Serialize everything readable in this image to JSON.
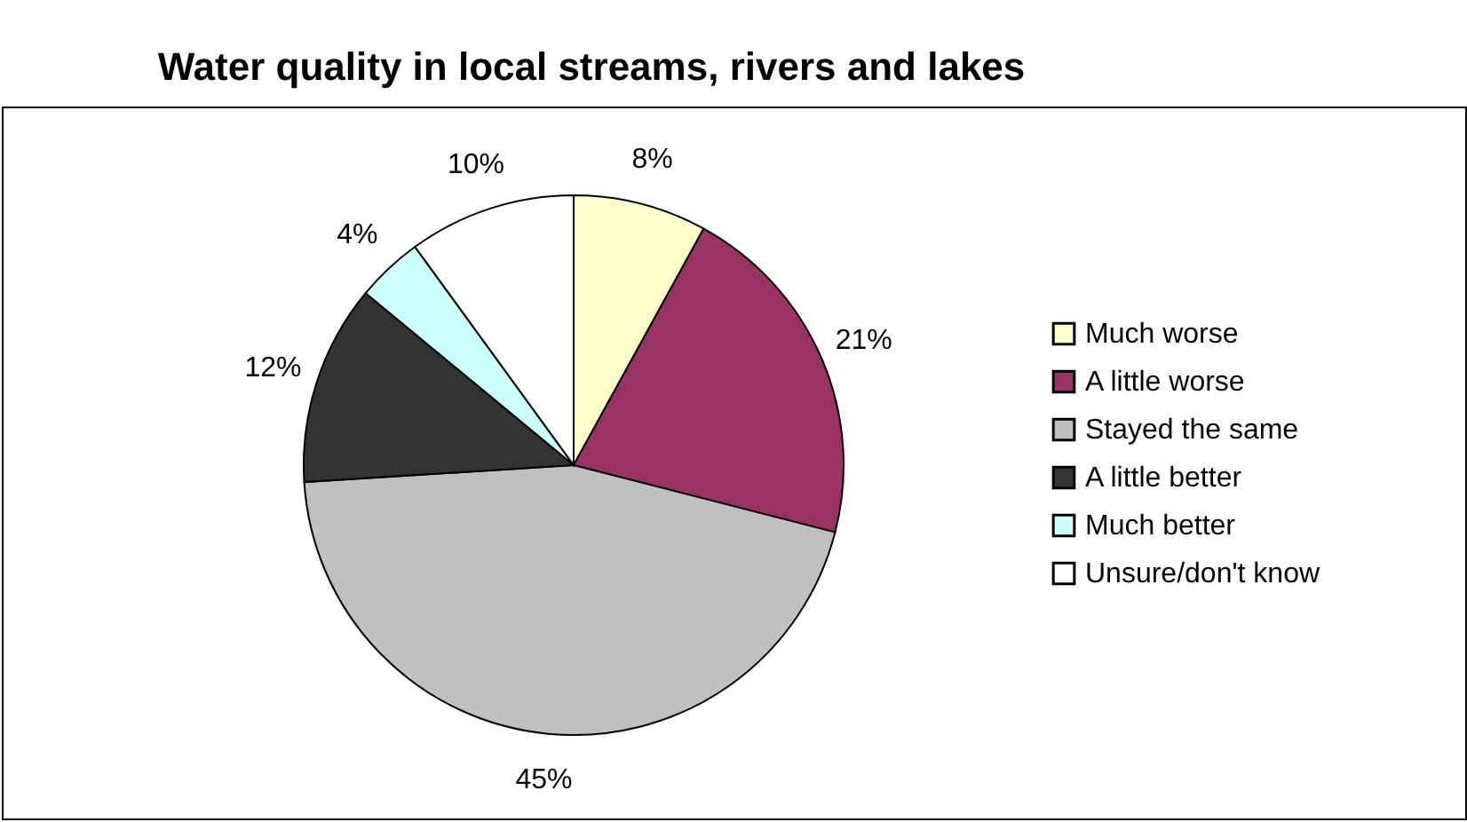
{
  "chart_data": {
    "type": "pie",
    "title": "Water quality in local streams, rivers and lakes",
    "categories": [
      "Much worse",
      "A little worse",
      "Stayed the same",
      "A little better",
      "Much better",
      "Unsure/don't know"
    ],
    "values": [
      8,
      21,
      45,
      12,
      4,
      10
    ],
    "value_labels": [
      "8%",
      "21%",
      "45%",
      "12%",
      "4%",
      "10%"
    ],
    "colors": [
      "#ffffcc",
      "#993366",
      "#c0c0c0",
      "#333333",
      "#ccffff",
      "#ffffff"
    ],
    "legend": "right"
  }
}
